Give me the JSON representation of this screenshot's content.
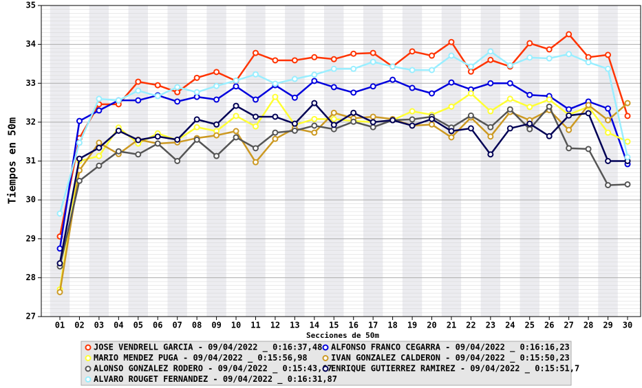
{
  "chart_data": {
    "type": "line",
    "x_label": "Secciones de 50m",
    "y_label": "Tiempos en 50m",
    "categories": [
      "01",
      "02",
      "03",
      "04",
      "05",
      "06",
      "07",
      "08",
      "09",
      "10",
      "11",
      "12",
      "13",
      "14",
      "15",
      "16",
      "17",
      "18",
      "19",
      "20",
      "21",
      "22",
      "23",
      "24",
      "25",
      "26",
      "27",
      "28",
      "29",
      "30"
    ],
    "ylim": [
      27,
      35
    ],
    "yticks": [
      27,
      28,
      29,
      30,
      31,
      32,
      33,
      34,
      35
    ],
    "grid": true,
    "series": [
      {
        "name": "JOSE VENDRELL GARCIA - 09/04/2022 _ 0:16:37,48",
        "color": "#ff3300",
        "values": [
          29.06,
          31.59,
          32.46,
          32.46,
          33.04,
          32.95,
          32.77,
          33.14,
          33.29,
          33.06,
          33.78,
          33.59,
          33.59,
          33.67,
          33.62,
          33.76,
          33.78,
          33.43,
          33.82,
          33.71,
          34.06,
          33.3,
          33.6,
          33.43,
          34.03,
          33.87,
          34.26,
          33.67,
          33.73,
          32.16
        ]
      },
      {
        "name": "ALFONSO FRANCO CEGARRA - 09/04/2022 _ 0:16:16,23",
        "color": "#0000dd",
        "values": [
          28.75,
          32.03,
          32.3,
          32.56,
          32.56,
          32.69,
          32.53,
          32.65,
          32.58,
          32.92,
          32.58,
          32.95,
          32.63,
          33.06,
          32.9,
          32.76,
          32.92,
          33.09,
          32.88,
          32.74,
          33.02,
          32.84,
          33.0,
          33.0,
          32.7,
          32.67,
          32.33,
          32.53,
          32.35,
          30.92
        ]
      },
      {
        "name": "MARIO MENDEZ PUGA - 09/04/2022 _ 0:15:56,98",
        "color": "#ffff33",
        "values": [
          27.7,
          31.0,
          31.13,
          31.86,
          31.45,
          31.71,
          31.54,
          31.87,
          31.77,
          32.16,
          31.89,
          32.65,
          31.93,
          32.08,
          32.08,
          32.03,
          32.0,
          32.05,
          32.28,
          32.19,
          32.4,
          32.74,
          32.28,
          32.6,
          32.39,
          32.58,
          32.19,
          32.4,
          31.73,
          31.5
        ]
      },
      {
        "name": "IVAN GONZALEZ CALDERON - 09/04/2022 _ 0:15:50,23",
        "color": "#cc9922",
        "values": [
          27.63,
          30.76,
          31.47,
          31.18,
          31.55,
          31.45,
          31.48,
          31.59,
          31.66,
          31.77,
          30.97,
          31.57,
          31.84,
          31.73,
          32.24,
          32.1,
          32.14,
          32.08,
          31.91,
          31.94,
          31.61,
          32.12,
          31.63,
          32.26,
          32.05,
          32.31,
          31.8,
          32.44,
          32.05,
          32.49
        ]
      },
      {
        "name": "ALONSO GONZALEZ RODERO - 09/04/2022 _ 0:15:43,67",
        "color": "#555555",
        "values": [
          28.29,
          30.49,
          30.88,
          31.25,
          31.17,
          31.45,
          31.0,
          31.55,
          31.13,
          31.61,
          31.33,
          31.73,
          31.78,
          31.91,
          31.82,
          32.01,
          31.87,
          32.05,
          32.07,
          32.14,
          31.86,
          32.17,
          31.87,
          32.33,
          31.82,
          32.4,
          31.33,
          31.31,
          30.38,
          30.4
        ]
      },
      {
        "name": "ENRIQUE GUTIERREZ RAMIREZ - 09/04/2022 _ 0:15:51,7",
        "color": "#000055",
        "values": [
          28.37,
          31.06,
          31.34,
          31.78,
          31.54,
          31.63,
          31.55,
          32.07,
          31.94,
          32.42,
          32.14,
          32.14,
          31.96,
          32.49,
          31.93,
          32.24,
          32.0,
          32.05,
          31.91,
          32.08,
          31.77,
          31.84,
          31.17,
          31.84,
          31.96,
          31.64,
          32.17,
          32.23,
          31.0,
          31.0
        ]
      },
      {
        "name": "ALVARO ROUGET FERNANDEZ - 09/04/2022 _ 0:16:31,87",
        "color": "#99eeff",
        "values": [
          29.65,
          31.47,
          32.6,
          32.56,
          32.81,
          32.67,
          32.9,
          32.77,
          32.93,
          33.07,
          33.23,
          32.99,
          33.11,
          33.22,
          33.37,
          33.37,
          33.55,
          33.43,
          33.34,
          33.34,
          33.71,
          33.43,
          33.82,
          33.46,
          33.66,
          33.64,
          33.75,
          33.54,
          33.37,
          31.1
        ]
      }
    ]
  }
}
